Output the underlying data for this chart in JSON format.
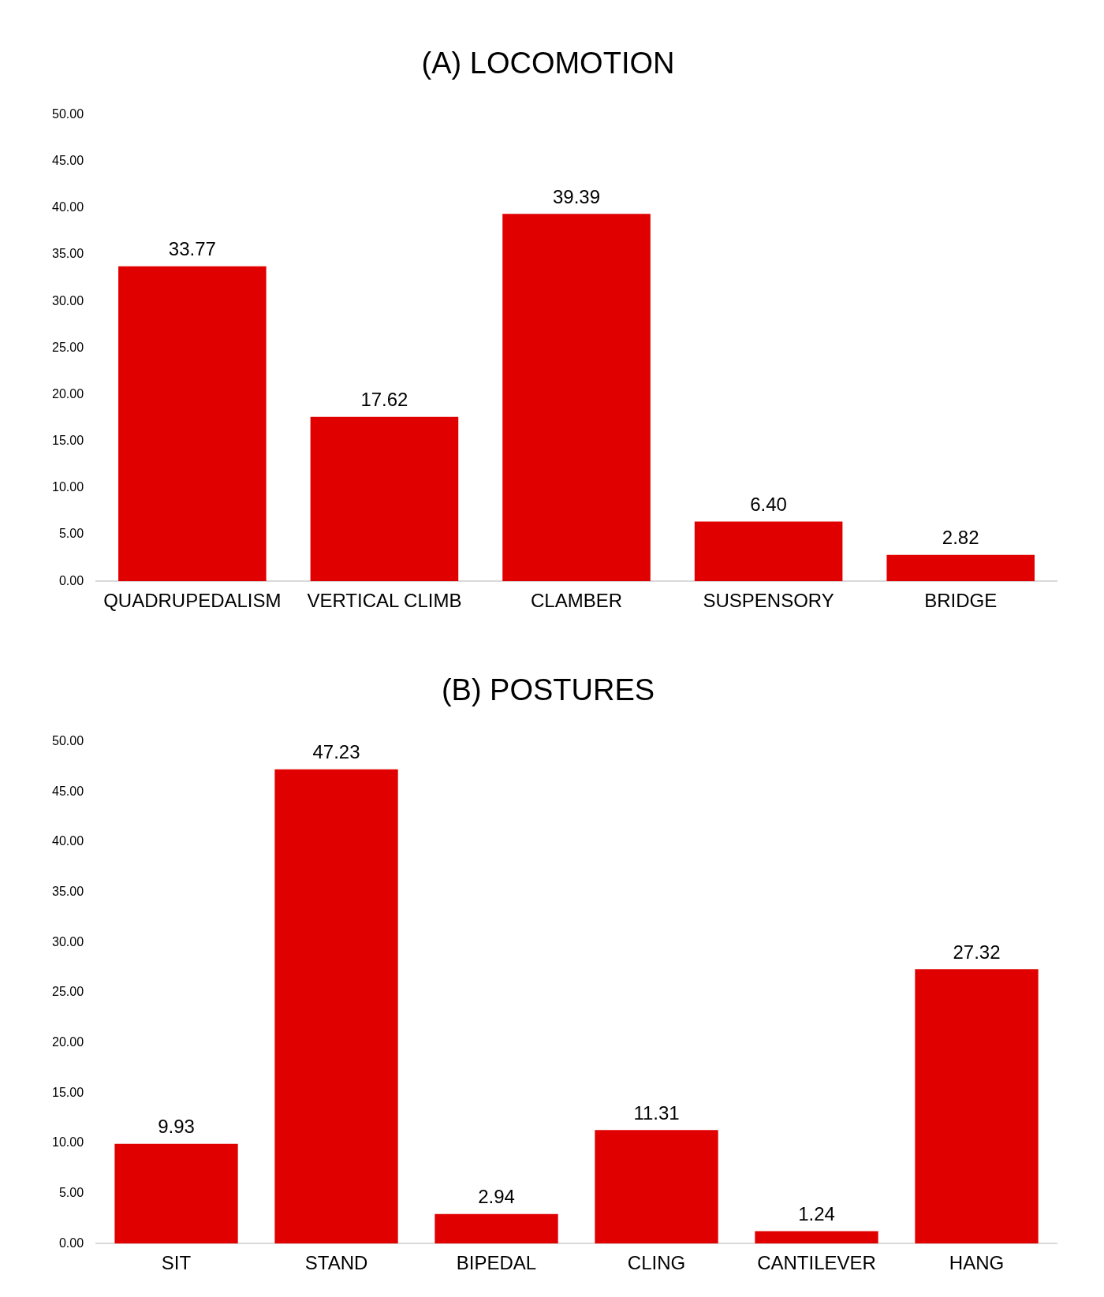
{
  "chart_data": [
    {
      "type": "bar",
      "title": "(A) LOCOMOTION",
      "categories": [
        "QUADRUPEDALISM",
        "VERTICAL CLIMB",
        "CLAMBER",
        "SUSPENSORY",
        "BRIDGE"
      ],
      "values": [
        33.77,
        17.62,
        39.39,
        6.4,
        2.82
      ],
      "value_labels": [
        "33.77",
        "17.62",
        "39.39",
        "6.40",
        "2.82"
      ],
      "color": "#e00000",
      "ylim": [
        0,
        50
      ],
      "yticks": [
        {
          "value": 0,
          "label": "0.00"
        },
        {
          "value": 5,
          "label": "5.00"
        },
        {
          "value": 10,
          "label": "10.00"
        },
        {
          "value": 15,
          "label": "15.00"
        },
        {
          "value": 20,
          "label": "20.00"
        },
        {
          "value": 25,
          "label": "25.00"
        },
        {
          "value": 30,
          "label": "30.00"
        },
        {
          "value": 35,
          "label": "35.00"
        },
        {
          "value": 40,
          "label": "40.00"
        },
        {
          "value": 45,
          "label": "45.00"
        },
        {
          "value": 50,
          "label": "50.00"
        }
      ]
    },
    {
      "type": "bar",
      "title": "(B) POSTURES",
      "categories": [
        "SIT",
        "STAND",
        "BIPEDAL",
        "CLING",
        "CANTILEVER",
        "HANG"
      ],
      "values": [
        9.93,
        47.23,
        2.94,
        11.31,
        1.24,
        27.32
      ],
      "value_labels": [
        "9.93",
        "47.23",
        "2.94",
        "11.31",
        "1.24",
        "27.32"
      ],
      "color": "#e00000",
      "ylim": [
        0,
        50
      ],
      "yticks": [
        {
          "value": 0,
          "label": "0.00"
        },
        {
          "value": 5,
          "label": "5.00"
        },
        {
          "value": 10,
          "label": "10.00"
        },
        {
          "value": 15,
          "label": "15.00"
        },
        {
          "value": 20,
          "label": "20.00"
        },
        {
          "value": 25,
          "label": "25.00"
        },
        {
          "value": 30,
          "label": "30.00"
        },
        {
          "value": 35,
          "label": "35.00"
        },
        {
          "value": 40,
          "label": "40.00"
        },
        {
          "value": 45,
          "label": "45.00"
        },
        {
          "value": 50,
          "label": "50.00"
        }
      ]
    }
  ]
}
